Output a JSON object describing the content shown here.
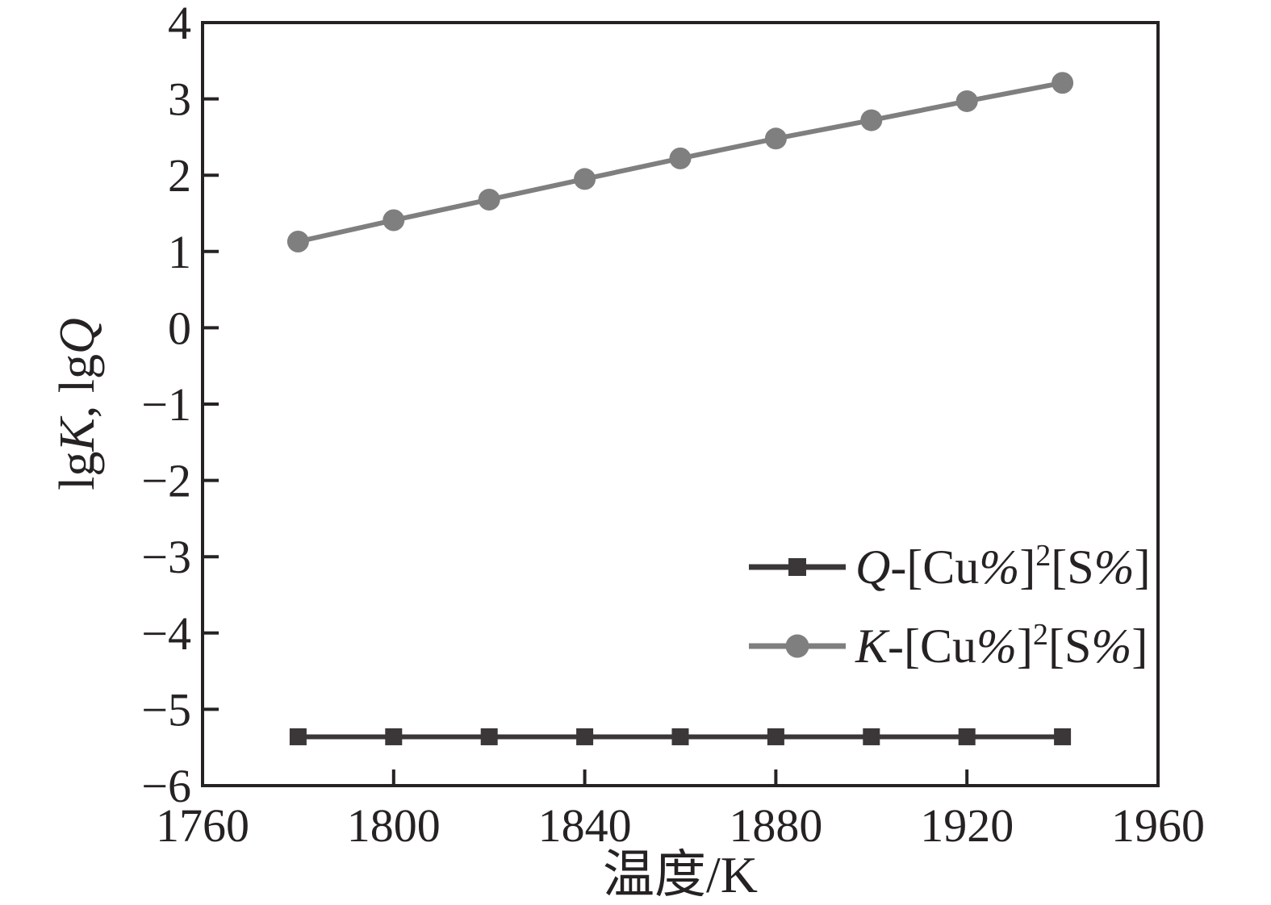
{
  "chart_data": {
    "type": "line",
    "title": "",
    "xlabel": "温度/K",
    "ylabel_plain": "lgK, lgQ",
    "ylabel_segments": [
      {
        "t": "lg"
      },
      {
        "t": "K",
        "i": true
      },
      {
        "t": ", lg"
      },
      {
        "t": "Q",
        "i": true
      }
    ],
    "x_range": [
      1760,
      1960
    ],
    "y_range": [
      -6,
      4
    ],
    "x_ticks": [
      1760,
      1800,
      1840,
      1880,
      1920,
      1960
    ],
    "y_ticks": [
      -6,
      -5,
      -4,
      -3,
      -2,
      -1,
      0,
      1,
      2,
      3,
      4
    ],
    "grid": false,
    "axis_color": "#262223",
    "legend_position": "inside-right-middle",
    "x": [
      1780,
      1800,
      1820,
      1840,
      1860,
      1880,
      1900,
      1920,
      1940
    ],
    "series": [
      {
        "name": "Q-[Cu%]2[S%]",
        "label_segments": [
          {
            "t": "Q",
            "i": true
          },
          {
            "t": "-[Cu"
          },
          {
            "t": "%",
            "i": true
          },
          {
            "t": "]"
          },
          {
            "t": "2",
            "sup": true
          },
          {
            "t": "[S"
          },
          {
            "t": "%",
            "i": true
          },
          {
            "t": "]"
          }
        ],
        "marker": "square",
        "color": "#3b3738",
        "values": [
          -5.36,
          -5.36,
          -5.36,
          -5.36,
          -5.36,
          -5.36,
          -5.36,
          -5.36,
          -5.36
        ]
      },
      {
        "name": "K-[Cu%]2[S%]",
        "label_segments": [
          {
            "t": "K",
            "i": true
          },
          {
            "t": "-[Cu"
          },
          {
            "t": "%",
            "i": true
          },
          {
            "t": "]"
          },
          {
            "t": "2",
            "sup": true
          },
          {
            "t": "[S"
          },
          {
            "t": "%",
            "i": true
          },
          {
            "t": "]"
          }
        ],
        "marker": "circle",
        "color": "#7f7f7f",
        "values": [
          1.13,
          1.41,
          1.68,
          1.95,
          2.22,
          2.48,
          2.72,
          2.97,
          3.21
        ]
      }
    ]
  }
}
